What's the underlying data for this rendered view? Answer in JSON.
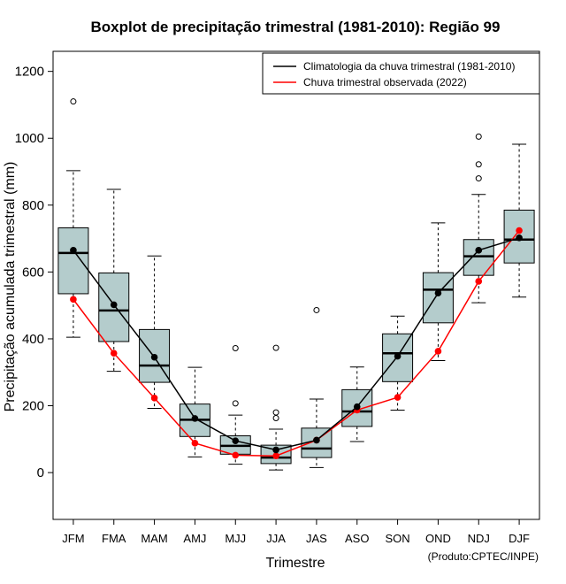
{
  "chart_data": {
    "type": "boxplot",
    "title": "Boxplot de precipitação trimestral (1981-2010): Região 99",
    "xlabel": "Trimestre",
    "ylabel": "Precipitação acumulada trimestral (mm)",
    "credit": "(Produto:CPTEC/INPE)",
    "ylim": [
      -140,
      1260
    ],
    "yticks": [
      0,
      200,
      400,
      600,
      800,
      1000,
      1200
    ],
    "categories": [
      "JFM",
      "FMA",
      "MAM",
      "AMJ",
      "MJJ",
      "JJA",
      "JAS",
      "ASO",
      "SON",
      "OND",
      "NDJ",
      "DJF"
    ],
    "boxes": [
      {
        "whisker_low": 405,
        "q1": 535,
        "median": 657,
        "q3": 732,
        "whisker_high": 903,
        "outliers": [
          1110
        ]
      },
      {
        "whisker_low": 303,
        "q1": 392,
        "median": 485,
        "q3": 597,
        "whisker_high": 847,
        "outliers": []
      },
      {
        "whisker_low": 192,
        "q1": 270,
        "median": 320,
        "q3": 428,
        "whisker_high": 648,
        "outliers": []
      },
      {
        "whisker_low": 47,
        "q1": 108,
        "median": 158,
        "q3": 205,
        "whisker_high": 315,
        "outliers": []
      },
      {
        "whisker_low": 25,
        "q1": 55,
        "median": 80,
        "q3": 110,
        "whisker_high": 172,
        "outliers": [
          207,
          372
        ]
      },
      {
        "whisker_low": 8,
        "q1": 27,
        "median": 45,
        "q3": 82,
        "whisker_high": 130,
        "outliers": [
          163,
          180,
          373
        ]
      },
      {
        "whisker_low": 15,
        "q1": 45,
        "median": 72,
        "q3": 133,
        "whisker_high": 220,
        "outliers": [
          486
        ]
      },
      {
        "whisker_low": 93,
        "q1": 138,
        "median": 183,
        "q3": 248,
        "whisker_high": 316,
        "outliers": []
      },
      {
        "whisker_low": 187,
        "q1": 272,
        "median": 357,
        "q3": 415,
        "whisker_high": 468,
        "outliers": []
      },
      {
        "whisker_low": 335,
        "q1": 448,
        "median": 547,
        "q3": 598,
        "whisker_high": 747,
        "outliers": []
      },
      {
        "whisker_low": 508,
        "q1": 590,
        "median": 647,
        "q3": 697,
        "whisker_high": 832,
        "outliers": [
          880,
          922,
          1005
        ]
      },
      {
        "whisker_low": 525,
        "q1": 627,
        "median": 697,
        "q3": 785,
        "whisker_high": 982,
        "outliers": []
      }
    ],
    "series": [
      {
        "name": "Climatologia da chuva trimestral (1981-2010)",
        "color": "#000000",
        "values": [
          665,
          502,
          345,
          162,
          95,
          68,
          97,
          197,
          348,
          537,
          665,
          702
        ]
      },
      {
        "name": "Chuva trimestral observada (2022)",
        "color": "#ff0000",
        "values": [
          518,
          357,
          223,
          88,
          52,
          50,
          97,
          187,
          225,
          363,
          572,
          724
        ]
      }
    ],
    "box_fill": "#b4cccc",
    "legend_position": "top-right"
  }
}
